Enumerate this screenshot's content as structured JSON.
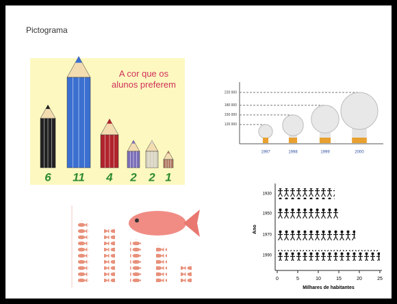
{
  "header": {
    "title": "Pictograma"
  },
  "chart_data": [
    {
      "type": "pencil",
      "title": "A cor que os alunos preferem",
      "values": [
        6,
        11,
        4,
        2,
        2,
        1
      ],
      "colors": [
        "#222222",
        "#3b6fd0",
        "#b0242c",
        "#7b6fb8",
        "#d8d3c0",
        "#b07860"
      ]
    },
    {
      "type": "bulb",
      "categories": [
        "1997",
        "1998",
        "1999",
        "2000"
      ],
      "values": [
        120000,
        150000,
        180000,
        220000
      ],
      "ylim": [
        60000,
        220000
      ],
      "yticks": [
        {
          "value": 120000,
          "label": "120 000"
        },
        {
          "value": 150000,
          "label": "150 000"
        },
        {
          "value": 180000,
          "label": "180 000"
        },
        {
          "value": 220000,
          "label": "220 000"
        }
      ]
    },
    {
      "type": "fish",
      "values": [
        10,
        9,
        7,
        6,
        3
      ],
      "color": "#e8907a"
    },
    {
      "type": "person",
      "categories": [
        "1930",
        "1950",
        "1970",
        "1990"
      ],
      "values": [
        14,
        15,
        19,
        25
      ],
      "xlim": [
        0,
        25
      ],
      "xticks": [
        0,
        5,
        10,
        15,
        20,
        25
      ],
      "xlabel": "Milhares de habitantes",
      "ylabel": "Ano"
    }
  ]
}
